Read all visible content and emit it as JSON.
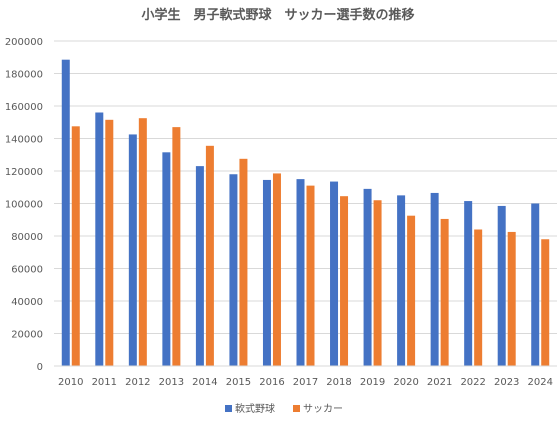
{
  "chart_data": {
    "type": "bar",
    "title": "小学生　男子軟式野球　サッカー選手数の推移",
    "xlabel": "",
    "ylabel": "",
    "categories": [
      "2010",
      "2011",
      "2012",
      "2013",
      "2014",
      "2015",
      "2016",
      "2017",
      "2018",
      "2019",
      "2020",
      "2021",
      "2022",
      "2023",
      "2024"
    ],
    "series": [
      {
        "name": "軟式野球",
        "color": "#4472C4",
        "values": [
          188500,
          156000,
          142500,
          131500,
          123000,
          118000,
          114500,
          115000,
          113500,
          109000,
          105000,
          106500,
          101500,
          98500,
          100000
        ]
      },
      {
        "name": "サッカー",
        "color": "#ED7D31",
        "values": [
          147500,
          151500,
          152500,
          147000,
          135500,
          127500,
          118500,
          111000,
          104500,
          102000,
          92500,
          90500,
          84000,
          82500,
          78000
        ]
      }
    ],
    "ylim": [
      0,
      200000
    ],
    "yticks": [
      "0",
      "20000",
      "40000",
      "60000",
      "80000",
      "100000",
      "120000",
      "140000",
      "160000",
      "180000",
      "200000"
    ],
    "grid": true,
    "legend": "bottom"
  }
}
